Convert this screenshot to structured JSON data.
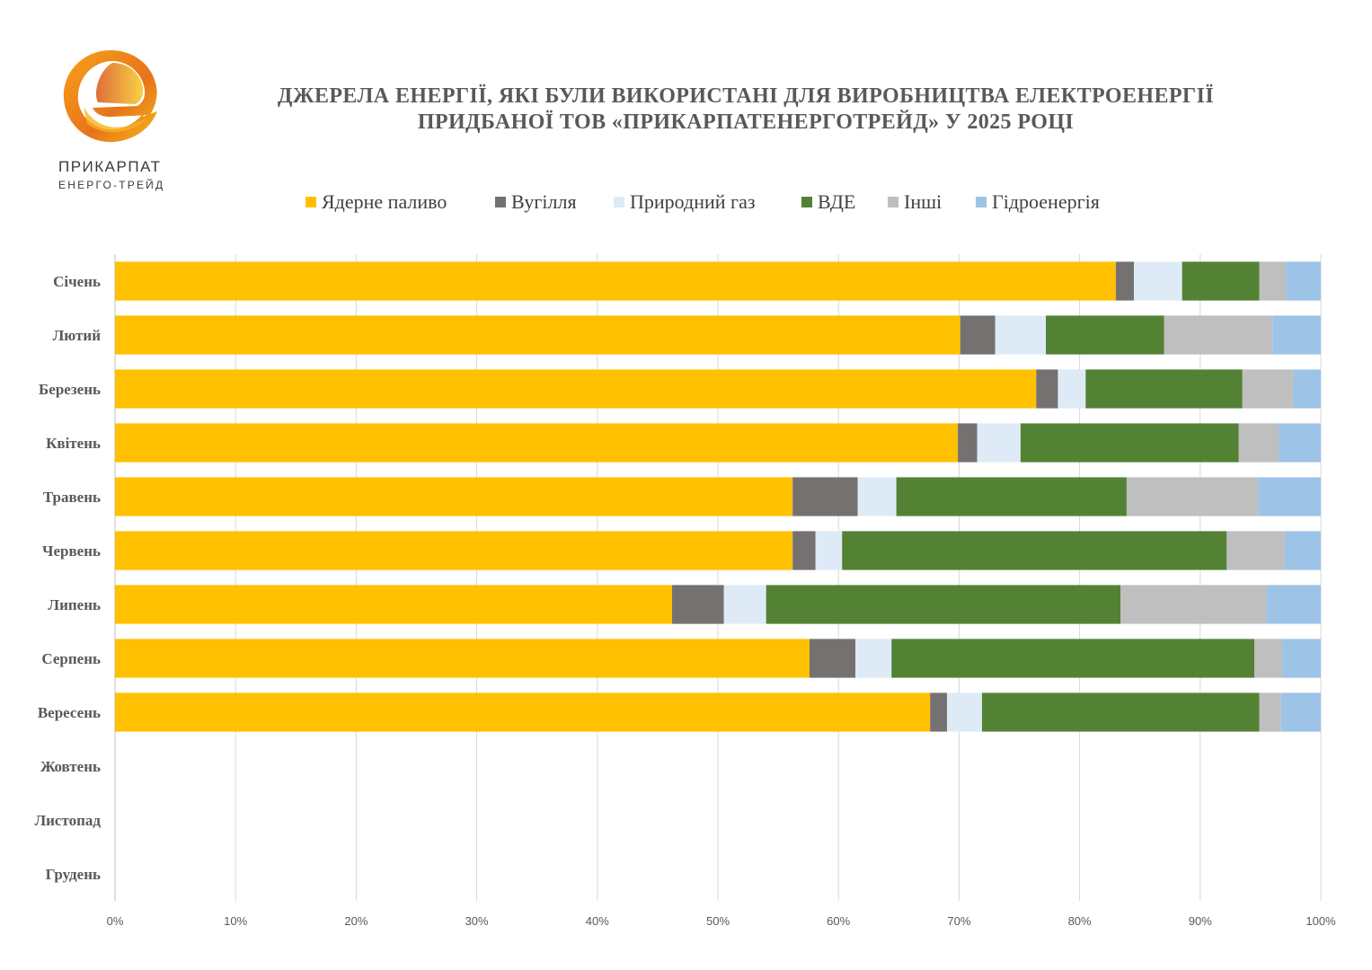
{
  "logo": {
    "line1": "ПРИКАРПАТ",
    "line2": "ЕНЕРГО-ТРЕЙД"
  },
  "chart_data": {
    "type": "bar",
    "orientation": "horizontal",
    "stacked": "100%",
    "title_line1": "ДЖЕРЕЛА ЕНЕРГІЇ, ЯКІ БУЛИ ВИКОРИСТАНІ ДЛЯ ВИРОБНИЦТВА ЕЛЕКТРОЕНЕРГІЇ",
    "title_line2": "ПРИДБАНОЇ ТОВ «ПРИКАРПАТЕНЕРГОТРЕЙД» У 2025 РОЦІ",
    "xlabel": "",
    "ylabel": "",
    "xlim": [
      0,
      100
    ],
    "grid": true,
    "legend_position": "top",
    "categories": [
      "Січень",
      "Лютий",
      "Березень",
      "Квітень",
      "Травень",
      "Червень",
      "Липень",
      "Серпень",
      "Вересень",
      "Жовтень",
      "Листопад",
      "Грудень"
    ],
    "x_ticks": [
      "0%",
      "10%",
      "20%",
      "30%",
      "40%",
      "50%",
      "60%",
      "70%",
      "80%",
      "90%",
      "100%"
    ],
    "series": [
      {
        "name": "Ядерне паливо",
        "color": "#FFC000",
        "values": [
          83.0,
          70.1,
          76.4,
          69.9,
          56.2,
          56.2,
          46.2,
          57.6,
          67.6,
          null,
          null,
          null
        ]
      },
      {
        "name": "Вугілля",
        "color": "#767171",
        "values": [
          1.5,
          2.9,
          1.8,
          1.6,
          5.4,
          1.9,
          4.3,
          3.8,
          1.4,
          null,
          null,
          null
        ]
      },
      {
        "name": "Природний газ",
        "color": "#DEEBF7",
        "values": [
          4.0,
          4.2,
          2.3,
          3.6,
          3.2,
          2.2,
          3.5,
          3.0,
          2.9,
          null,
          null,
          null
        ]
      },
      {
        "name": "ВДЕ",
        "color": "#548235",
        "values": [
          6.4,
          9.8,
          13.0,
          18.1,
          19.1,
          31.9,
          29.4,
          30.1,
          23.0,
          null,
          null,
          null
        ]
      },
      {
        "name": "Інші",
        "color": "#BFBFBF",
        "values": [
          2.2,
          9.0,
          4.2,
          3.3,
          10.9,
          4.8,
          12.1,
          2.3,
          1.8,
          null,
          null,
          null
        ]
      },
      {
        "name": "Гідроенергія",
        "color": "#9DC3E6",
        "values": [
          2.9,
          4.0,
          2.3,
          3.5,
          5.2,
          3.0,
          4.5,
          3.2,
          3.3,
          null,
          null,
          null
        ]
      }
    ]
  }
}
